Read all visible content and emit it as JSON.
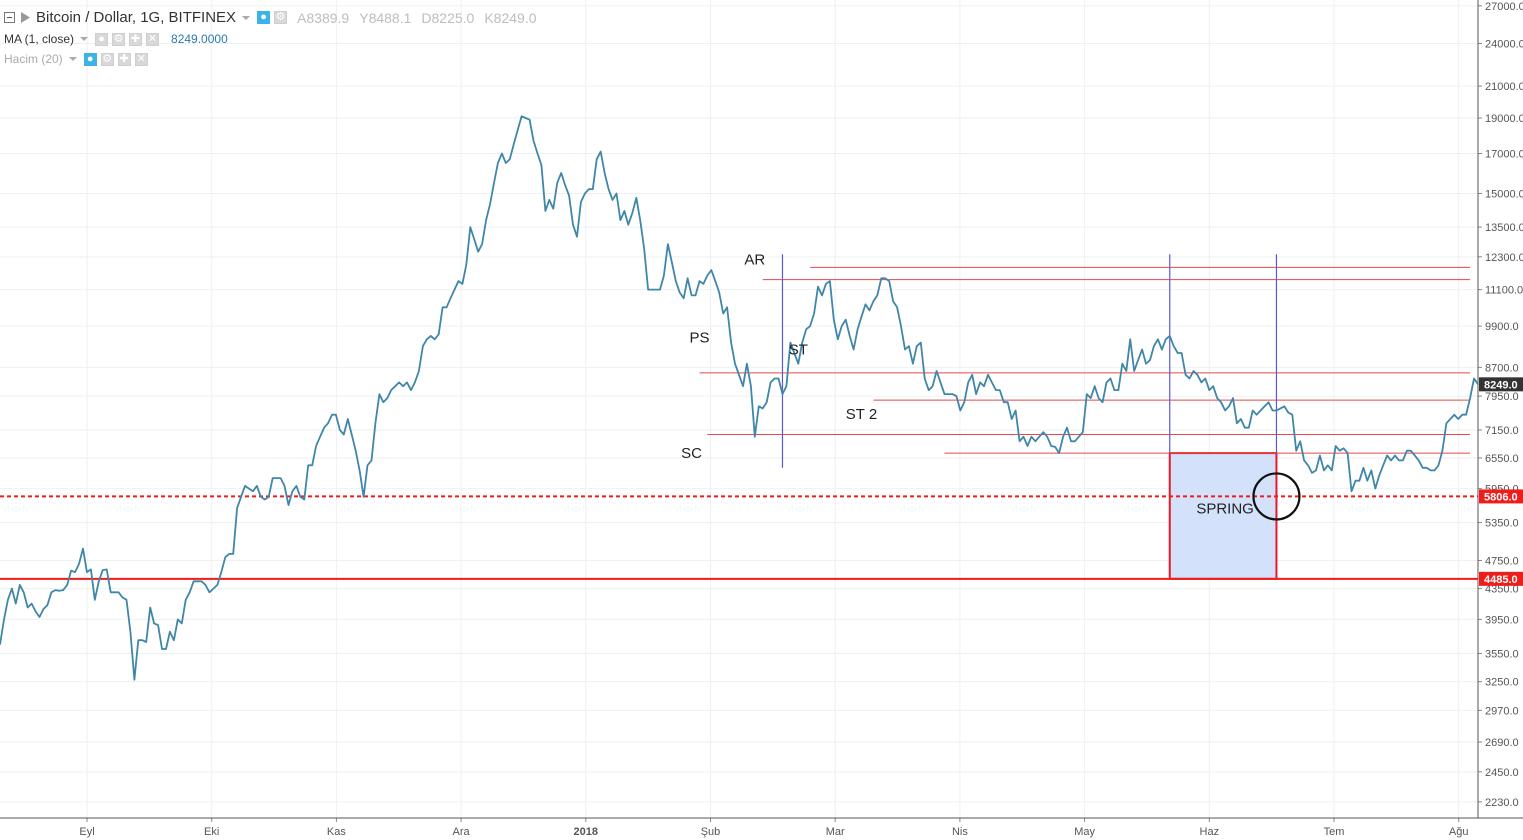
{
  "legend": {
    "title": "Bitcoin / Dollar, 1G, BITFINEX",
    "ohlc": [
      "A8389.9",
      "Y8488.1",
      "D8225.0",
      "K8249.0"
    ],
    "ma_label": "MA (1, close)",
    "ma_value": "8249.0000",
    "volume_label": "Hacim (20)"
  },
  "colors": {
    "price_line": "#3f86a8",
    "level_line": "#e24a4a",
    "support_line": "#ef1c1c",
    "vertical_marker": "#5b57d8",
    "box_fill": "#d4e1fb",
    "box_border": "#e8192c",
    "last_price_tag": "#333333",
    "level_tag": "#ef1c1c"
  },
  "chart_data": {
    "type": "line",
    "series": [
      {
        "values": [
          3650,
          3950,
          4200,
          4350,
          4150,
          4400,
          4300,
          4100,
          4150,
          4050,
          3980,
          4080,
          4130,
          4300,
          4330,
          4320,
          4330,
          4400,
          4600,
          4580,
          4700,
          4930,
          4580,
          4620,
          4200,
          4450,
          4610,
          4620,
          4300,
          4300,
          4300,
          4230,
          4200,
          3800,
          3270,
          3700,
          3700,
          3680,
          4100,
          3900,
          3880,
          3600,
          3600,
          3800,
          3700,
          3950,
          3900,
          4200,
          4300,
          4450,
          4450,
          4450,
          4400,
          4300,
          4350,
          4400,
          4580,
          4800,
          4850,
          4850,
          5600,
          5800,
          6000,
          5950,
          5900,
          6000,
          5800,
          5750,
          5800,
          6150,
          6150,
          6150,
          6000,
          5650,
          5900,
          6000,
          5800,
          5750,
          6400,
          6400,
          6800,
          7000,
          7200,
          7300,
          7500,
          7500,
          7150,
          7050,
          7400,
          7050,
          6700,
          6300,
          5800,
          6400,
          6500,
          7300,
          8000,
          7800,
          7900,
          8100,
          8200,
          8300,
          8200,
          8300,
          8100,
          8300,
          8600,
          9300,
          9500,
          9600,
          9500,
          9650,
          10500,
          10500,
          10800,
          11100,
          11400,
          11300,
          12000,
          13500,
          13000,
          12500,
          12800,
          13800,
          14500,
          15500,
          16500,
          17000,
          16500,
          16700,
          17500,
          18300,
          19100,
          19000,
          18900,
          17700,
          17000,
          16400,
          14200,
          14700,
          14300,
          15500,
          16000,
          15400,
          14900,
          13600,
          13100,
          14600,
          15000,
          15200,
          15200,
          16700,
          17100,
          16000,
          15200,
          14700,
          15000,
          13800,
          14200,
          13600,
          14100,
          14800,
          13800,
          12600,
          11100,
          11100,
          11100,
          11100,
          11600,
          12800,
          12100,
          11400,
          11000,
          10800,
          11500,
          10900,
          10900,
          11400,
          11300,
          11600,
          11800,
          11400,
          11000,
          10300,
          10500,
          9400,
          8800,
          8500,
          8200,
          8800,
          8200,
          7000,
          7700,
          7650,
          7800,
          8300,
          8400,
          8400,
          8000,
          8200,
          9400,
          9100,
          8800,
          9400,
          9800,
          9900,
          10300,
          11200,
          10900,
          11300,
          11400,
          10100,
          9500,
          9900,
          10100,
          9600,
          9200,
          9800,
          10200,
          10600,
          10400,
          10700,
          10900,
          11500,
          11500,
          11400,
          10700,
          10500,
          9900,
          9200,
          9300,
          8800,
          9300,
          9400,
          8400,
          8100,
          8200,
          8600,
          8300,
          8000,
          8000,
          8000,
          7950,
          7600,
          7800,
          8300,
          8500,
          8000,
          8300,
          8200,
          8500,
          8300,
          8100,
          8100,
          7800,
          7800,
          7400,
          7600,
          6900,
          7000,
          6800,
          7000,
          6900,
          7000,
          7100,
          7000,
          6800,
          6780,
          6650,
          7000,
          7200,
          6900,
          6900,
          7000,
          7100,
          8000,
          7900,
          8200,
          7900,
          7800,
          8300,
          8400,
          8100,
          8100,
          8800,
          8600,
          9500,
          8600,
          8900,
          9200,
          8800,
          8900,
          9300,
          9500,
          9200,
          9500,
          9600,
          9300,
          9100,
          9100,
          8500,
          8400,
          8600,
          8500,
          8300,
          8400,
          8100,
          8200,
          7900,
          7800,
          7600,
          7700,
          7900,
          7300,
          7400,
          7200,
          7200,
          7600,
          7500,
          7600,
          7700,
          7800,
          7600,
          7600,
          7650,
          7700,
          7550,
          7500,
          6700,
          6900,
          6500,
          6400,
          6250,
          6300,
          6600,
          6300,
          6400,
          6300,
          6800,
          6700,
          6750,
          6650,
          5900,
          6100,
          6100,
          6350,
          6100,
          6300,
          5950,
          6200,
          6400,
          6600,
          6500,
          6600,
          6500,
          6500,
          6700,
          6700,
          6600,
          6500,
          6350,
          6350,
          6300,
          6300,
          6400,
          6700,
          7300,
          7400,
          7500,
          7400,
          7500,
          7500,
          7900,
          8400,
          8249
        ]
      }
    ],
    "x_ticks": [
      "Eyl",
      "Eki",
      "Kas",
      "Ara",
      "2018",
      "Şub",
      "Mar",
      "Nis",
      "May",
      "Haz",
      "Tem",
      "Ağu"
    ],
    "y_ticks": [
      "2230.0",
      "2450.0",
      "2690.0",
      "2970.0",
      "3250.0",
      "3550.0",
      "3950.0",
      "4350.0",
      "4750.0",
      "5350.0",
      "5950.0",
      "6550.0",
      "7150.0",
      "7950.0",
      "8700.0",
      "9900.0",
      "11100.0",
      "12300.0",
      "13500.0",
      "15000.0",
      "17000.0",
      "19000.0",
      "21000.0",
      "24000.0",
      "27000.0"
    ],
    "y_scale": "log",
    "ylim": [
      2120,
      27500
    ],
    "grid": true,
    "annotations": [
      {
        "text": "AR",
        "date_index": 191,
        "price": 12000
      },
      {
        "text": "PS",
        "date_index": 177,
        "price": 9400
      },
      {
        "text": "ST",
        "date_index": 202,
        "price": 9050
      },
      {
        "text": "SC",
        "date_index": 175,
        "price": 6550
      },
      {
        "text": "ST 2",
        "date_index": 218,
        "price": 7400
      },
      {
        "text": "SPRING",
        "date_index": 310,
        "price": 5500
      }
    ],
    "levels": [
      {
        "price": 11900,
        "from_index": 205
      },
      {
        "price": 11450,
        "from_index": 193
      },
      {
        "price": 8550,
        "from_index": 177
      },
      {
        "price": 7850,
        "from_index": 221
      },
      {
        "price": 7050,
        "from_index": 179
      },
      {
        "price": 6650,
        "from_index": 239
      }
    ],
    "price_levels": [
      {
        "price": 5806,
        "label": "5806.0",
        "style": "dashed"
      },
      {
        "price": 4485,
        "label": "4485.0",
        "style": "solid"
      }
    ],
    "last_price": {
      "price": 8249,
      "label": "8249.0"
    },
    "vertical_markers": [
      {
        "date_index": 198,
        "price_top": 12400,
        "price_bottom": 6350
      },
      {
        "date_index": 296,
        "price_top": 12400,
        "price_bottom": 6650
      },
      {
        "date_index": 323,
        "price_top": 12400,
        "price_bottom": 6650
      }
    ],
    "spring_box": {
      "from_index": 296,
      "to_index": 323,
      "price_top": 6650,
      "price_bottom": 4485
    },
    "circle_marker": {
      "date_index": 323,
      "price": 5806
    }
  }
}
